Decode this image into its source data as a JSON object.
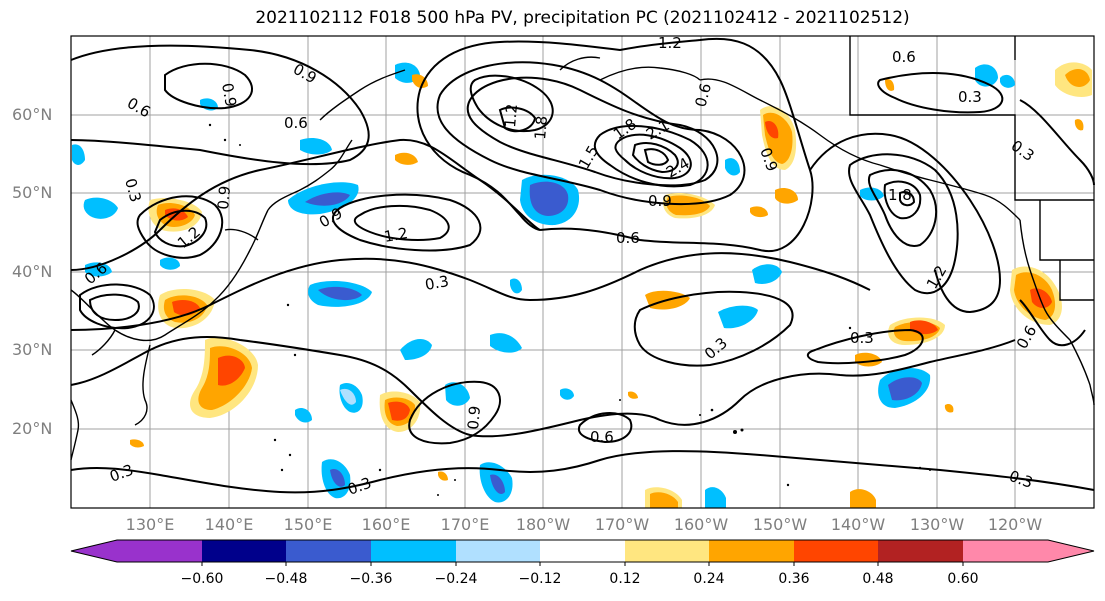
{
  "title": "2021102112 F018 500 hPa PV, precipitation PC (2021102412 - 2021102512)",
  "lat_labels": [
    "60°N",
    "50°N",
    "40°N",
    "30°N",
    "20°N"
  ],
  "lon_labels": [
    "130°E",
    "140°E",
    "150°E",
    "160°E",
    "170°E",
    "180°W",
    "170°W",
    "160°W",
    "150°W",
    "140°W",
    "130°W",
    "120°W"
  ],
  "colorbar": {
    "ticks": [
      "−0.60",
      "−0.48",
      "−0.36",
      "−0.24",
      "−0.12",
      "0.12",
      "0.24",
      "0.36",
      "0.48",
      "0.60"
    ],
    "colors": [
      "#9932cc",
      "#00008b",
      "#3a5bcf",
      "#00bfff",
      "#b0e0ff",
      "#ffffff",
      "#ffe680",
      "#ffa500",
      "#ff4500",
      "#b22222",
      "#ff88aa"
    ]
  },
  "contour_labels": [
    "1.2",
    "0.9",
    "0.6",
    "0.3",
    "0.6",
    "0.9",
    "0.6",
    "0.6",
    "1.8",
    "1.5",
    "1.8",
    "2.1",
    "2.4",
    "0.9",
    "0.6",
    "0.3",
    "1.2",
    "0.9",
    "0.9",
    "1.2",
    "0.6",
    "0.3",
    "0.3",
    "0.9",
    "0.3",
    "0.6",
    "0.9",
    "0.3",
    "0.3",
    "0.3",
    "1.8",
    "1.2",
    "1.2",
    "0.3",
    "0.6"
  ],
  "colors": {
    "land_line": "#000000",
    "grid": "#a0a0a0",
    "frame": "#000000"
  }
}
